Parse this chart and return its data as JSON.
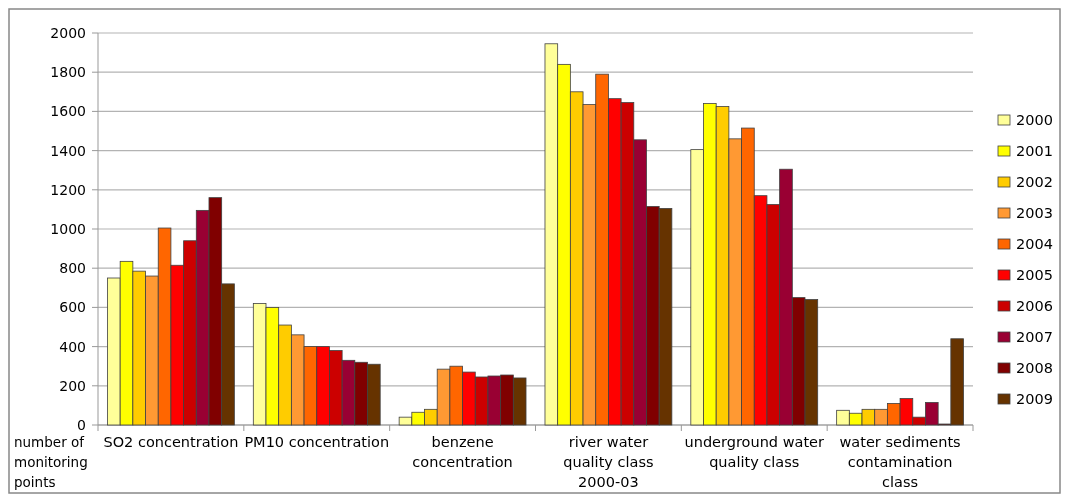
{
  "chart_data": {
    "type": "bar",
    "ylabel": "number of monitoring points",
    "categories": [
      "SO2 concentration",
      "PM10 concentration",
      "benzene concentration",
      "river water quality class 2000-03",
      "underground water quality class",
      "water sediments contamination class"
    ],
    "series": [
      {
        "name": "2000",
        "color": "#ffff99",
        "values": [
          750,
          620,
          40,
          1945,
          1405,
          75
        ]
      },
      {
        "name": "2001",
        "color": "#ffff00",
        "values": [
          835,
          600,
          65,
          1840,
          1640,
          60
        ]
      },
      {
        "name": "2002",
        "color": "#ffcc00",
        "values": [
          785,
          510,
          80,
          1700,
          1625,
          80
        ]
      },
      {
        "name": "2003",
        "color": "#ff9933",
        "values": [
          760,
          460,
          285,
          1635,
          1460,
          80
        ]
      },
      {
        "name": "2004",
        "color": "#ff6600",
        "values": [
          1005,
          400,
          300,
          1790,
          1515,
          110
        ]
      },
      {
        "name": "2005",
        "color": "#ff0000",
        "values": [
          815,
          400,
          270,
          1665,
          1170,
          135
        ]
      },
      {
        "name": "2006",
        "color": "#cc0000",
        "values": [
          940,
          380,
          245,
          1645,
          1125,
          40
        ]
      },
      {
        "name": "2007",
        "color": "#990033",
        "values": [
          1095,
          330,
          250,
          1455,
          1305,
          115
        ]
      },
      {
        "name": "2008",
        "color": "#800000",
        "values": [
          1160,
          320,
          255,
          1115,
          650,
          5
        ]
      },
      {
        "name": "2009",
        "color": "#663300",
        "values": [
          720,
          310,
          240,
          1105,
          640,
          440
        ]
      }
    ],
    "ylim": [
      0,
      2000
    ],
    "yticks": [
      0,
      200,
      400,
      600,
      800,
      1000,
      1200,
      1400,
      1600,
      1800,
      2000
    ],
    "grid": "y",
    "legend": "right"
  }
}
